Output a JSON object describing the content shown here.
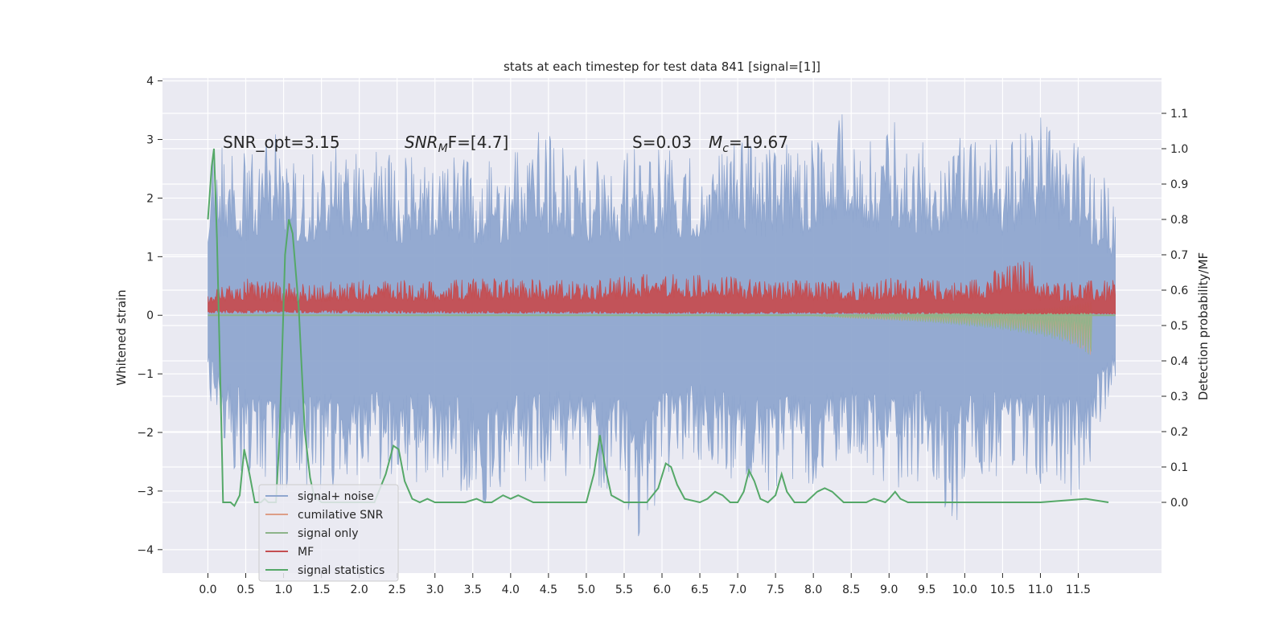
{
  "chart_data": {
    "type": "line",
    "title": "stats at each timestep for test data 841 [signal=[1]]",
    "xlabel": "",
    "ylabel": "Whitened strain",
    "ylabel_right": "Detection probability/MF",
    "xlim": [
      -0.6,
      12.6
    ],
    "ylim": [
      -4.4,
      4.05
    ],
    "ylim_right": [
      -0.2,
      1.2
    ],
    "x_ticks": [
      "0.0",
      "0.5",
      "1.0",
      "1.5",
      "2.0",
      "2.5",
      "3.0",
      "3.5",
      "4.0",
      "4.5",
      "5.0",
      "5.5",
      "6.0",
      "6.5",
      "7.0",
      "7.5",
      "8.0",
      "8.5",
      "9.0",
      "9.5",
      "10.0",
      "10.5",
      "11.0",
      "11.5"
    ],
    "y_ticks": [
      "−4",
      "−3",
      "−2",
      "−1",
      "0",
      "1",
      "2",
      "3",
      "4"
    ],
    "y_ticks_right": [
      "0.0",
      "0.1",
      "0.2",
      "0.3",
      "0.4",
      "0.5",
      "0.6",
      "0.7",
      "0.8",
      "0.9",
      "1.0",
      "1.1"
    ],
    "grid": true,
    "legend_placement": "lower-left",
    "annotations": {
      "snr_opt": "SNR_opt=3.15",
      "snr_mf": {
        "base": "SNR",
        "sub": "M",
        "rest": "F=[4.7]"
      },
      "s": "S=0.03",
      "mc": {
        "base": "M",
        "sub": "c",
        "rest": "=19.67"
      }
    },
    "series": [
      {
        "name": "signal+ noise",
        "color": "#8fa6cf",
        "t_range": [
          0.0,
          11.99
        ],
        "envelope_upper": [
          [
            0.0,
            2.6
          ],
          [
            0.1,
            2.9
          ],
          [
            0.5,
            2.8
          ],
          [
            0.8,
            3.2
          ],
          [
            0.85,
            3.45
          ],
          [
            1.0,
            2.7
          ],
          [
            1.5,
            2.8
          ],
          [
            2.0,
            3.0
          ],
          [
            2.5,
            2.7
          ],
          [
            3.0,
            2.9
          ],
          [
            3.5,
            2.6
          ],
          [
            4.0,
            2.7
          ],
          [
            4.2,
            3.2
          ],
          [
            4.5,
            3.1
          ],
          [
            5.0,
            2.7
          ],
          [
            5.2,
            2.8
          ],
          [
            5.5,
            2.7
          ],
          [
            5.8,
            3.2
          ],
          [
            6.0,
            2.8
          ],
          [
            6.5,
            2.9
          ],
          [
            7.0,
            3.1
          ],
          [
            7.5,
            2.9
          ],
          [
            8.0,
            3.0
          ],
          [
            8.4,
            3.65
          ],
          [
            8.8,
            3.1
          ],
          [
            9.0,
            3.4
          ],
          [
            9.5,
            3.0
          ],
          [
            10.0,
            3.1
          ],
          [
            10.5,
            3.0
          ],
          [
            11.0,
            3.4
          ],
          [
            11.5,
            3.0
          ],
          [
            11.99,
            2.1
          ]
        ],
        "envelope_lower": [
          [
            0.0,
            -1.3
          ],
          [
            0.2,
            -2.5
          ],
          [
            0.5,
            -2.8
          ],
          [
            0.8,
            -3.2
          ],
          [
            1.2,
            -2.9
          ],
          [
            1.5,
            -3.0
          ],
          [
            2.0,
            -2.8
          ],
          [
            2.5,
            -3.0
          ],
          [
            3.0,
            -2.9
          ],
          [
            3.5,
            -3.1
          ],
          [
            3.7,
            -3.55
          ],
          [
            4.0,
            -2.9
          ],
          [
            4.5,
            -2.9
          ],
          [
            5.0,
            -2.8
          ],
          [
            5.5,
            -3.2
          ],
          [
            5.6,
            -3.45
          ],
          [
            5.7,
            -4.1
          ],
          [
            6.0,
            -2.9
          ],
          [
            6.5,
            -2.6
          ],
          [
            7.0,
            -3.0
          ],
          [
            7.5,
            -3.1
          ],
          [
            8.0,
            -2.9
          ],
          [
            8.5,
            -2.7
          ],
          [
            9.0,
            -3.0
          ],
          [
            9.5,
            -2.8
          ],
          [
            9.85,
            -3.8
          ],
          [
            10.0,
            -2.9
          ],
          [
            10.5,
            -2.9
          ],
          [
            11.0,
            -3.0
          ],
          [
            11.5,
            -3.1
          ],
          [
            11.99,
            -1.3
          ]
        ]
      },
      {
        "name": "cumilative SNR",
        "color": "#dd9e87",
        "points": [
          [
            7.8,
            0.0
          ],
          [
            8.5,
            -0.05
          ],
          [
            9.0,
            -0.08
          ],
          [
            9.5,
            -0.1
          ],
          [
            10.0,
            -0.15
          ],
          [
            10.5,
            -0.2
          ],
          [
            11.0,
            -0.3
          ],
          [
            11.3,
            -0.4
          ],
          [
            11.5,
            -0.55
          ],
          [
            11.68,
            -0.7
          ]
        ]
      },
      {
        "name": "signal only",
        "color": "#8db48a",
        "points": [
          [
            7.8,
            0.0
          ],
          [
            8.5,
            -0.05
          ],
          [
            9.0,
            -0.08
          ],
          [
            9.5,
            -0.12
          ],
          [
            10.0,
            -0.18
          ],
          [
            10.5,
            -0.25
          ],
          [
            11.0,
            -0.35
          ],
          [
            11.3,
            -0.45
          ],
          [
            11.5,
            -0.55
          ],
          [
            11.68,
            -0.72
          ]
        ]
      },
      {
        "name": "MF",
        "color": "#c44e52",
        "t_range": [
          0.0,
          11.99
        ],
        "envelope_upper": [
          [
            0.0,
            0.4
          ],
          [
            0.5,
            0.65
          ],
          [
            1.0,
            0.55
          ],
          [
            2.0,
            0.6
          ],
          [
            3.0,
            0.6
          ],
          [
            4.0,
            0.65
          ],
          [
            5.0,
            0.6
          ],
          [
            6.0,
            0.75
          ],
          [
            7.0,
            0.65
          ],
          [
            8.0,
            0.6
          ],
          [
            9.0,
            0.65
          ],
          [
            10.0,
            0.6
          ],
          [
            10.85,
            1.0
          ],
          [
            11.0,
            0.6
          ],
          [
            11.99,
            0.6
          ]
        ],
        "envelope_lower": [
          [
            0.0,
            0.1
          ],
          [
            11.99,
            0.05
          ]
        ]
      },
      {
        "name": "signal statistics",
        "color": "#55a868",
        "axis": "right",
        "points": [
          [
            0.0,
            0.8
          ],
          [
            0.05,
            0.95
          ],
          [
            0.08,
            1.0
          ],
          [
            0.12,
            0.75
          ],
          [
            0.18,
            0.2
          ],
          [
            0.2,
            0.0
          ],
          [
            0.3,
            0.0
          ],
          [
            0.35,
            -0.01
          ],
          [
            0.42,
            0.02
          ],
          [
            0.48,
            0.15
          ],
          [
            0.55,
            0.08
          ],
          [
            0.62,
            0.0
          ],
          [
            0.7,
            0.0
          ],
          [
            0.75,
            0.01
          ],
          [
            0.8,
            0.0
          ],
          [
            0.9,
            0.0
          ],
          [
            0.95,
            0.2
          ],
          [
            1.02,
            0.7
          ],
          [
            1.07,
            0.8
          ],
          [
            1.12,
            0.76
          ],
          [
            1.2,
            0.55
          ],
          [
            1.28,
            0.2
          ],
          [
            1.35,
            0.07
          ],
          [
            1.4,
            0.02
          ],
          [
            1.5,
            0.0
          ],
          [
            2.0,
            0.0
          ],
          [
            2.2,
            0.0
          ],
          [
            2.35,
            0.08
          ],
          [
            2.45,
            0.16
          ],
          [
            2.52,
            0.15
          ],
          [
            2.6,
            0.06
          ],
          [
            2.7,
            0.01
          ],
          [
            2.8,
            0.0
          ],
          [
            2.9,
            0.01
          ],
          [
            3.0,
            0.0
          ],
          [
            3.2,
            0.0
          ],
          [
            3.4,
            0.0
          ],
          [
            3.55,
            0.01
          ],
          [
            3.65,
            0.0
          ],
          [
            3.75,
            0.0
          ],
          [
            3.9,
            0.02
          ],
          [
            4.0,
            0.01
          ],
          [
            4.1,
            0.02
          ],
          [
            4.3,
            0.0
          ],
          [
            4.5,
            0.0
          ],
          [
            5.0,
            0.0
          ],
          [
            5.1,
            0.08
          ],
          [
            5.18,
            0.19
          ],
          [
            5.25,
            0.1
          ],
          [
            5.33,
            0.02
          ],
          [
            5.5,
            0.0
          ],
          [
            5.8,
            0.0
          ],
          [
            5.95,
            0.04
          ],
          [
            6.05,
            0.11
          ],
          [
            6.12,
            0.1
          ],
          [
            6.2,
            0.05
          ],
          [
            6.3,
            0.01
          ],
          [
            6.5,
            0.0
          ],
          [
            6.6,
            0.01
          ],
          [
            6.7,
            0.03
          ],
          [
            6.8,
            0.02
          ],
          [
            6.9,
            0.0
          ],
          [
            7.0,
            0.0
          ],
          [
            7.08,
            0.03
          ],
          [
            7.15,
            0.09
          ],
          [
            7.22,
            0.06
          ],
          [
            7.3,
            0.01
          ],
          [
            7.4,
            0.0
          ],
          [
            7.5,
            0.02
          ],
          [
            7.58,
            0.08
          ],
          [
            7.65,
            0.03
          ],
          [
            7.75,
            0.0
          ],
          [
            7.9,
            0.0
          ],
          [
            8.05,
            0.03
          ],
          [
            8.15,
            0.04
          ],
          [
            8.25,
            0.03
          ],
          [
            8.4,
            0.0
          ],
          [
            8.7,
            0.0
          ],
          [
            8.8,
            0.01
          ],
          [
            8.95,
            0.0
          ],
          [
            9.0,
            0.01
          ],
          [
            9.08,
            0.03
          ],
          [
            9.15,
            0.01
          ],
          [
            9.25,
            0.0
          ],
          [
            10.0,
            0.0
          ],
          [
            11.0,
            0.0
          ],
          [
            11.6,
            0.01
          ],
          [
            11.9,
            0.0
          ]
        ]
      }
    ]
  }
}
